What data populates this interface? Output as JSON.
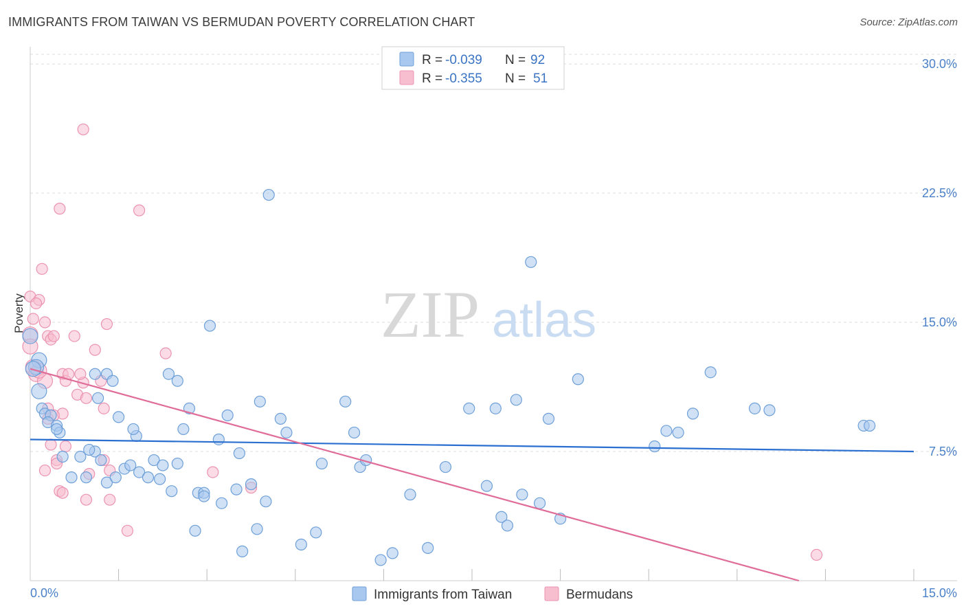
{
  "title": "IMMIGRANTS FROM TAIWAN VS BERMUDAN POVERTY CORRELATION CHART",
  "source": "Source: ZipAtlas.com",
  "watermark": {
    "zip": "ZIP",
    "atlas": "atlas"
  },
  "legend": {
    "rows": [
      {
        "r_label": "R = ",
        "r_value": "-0.039",
        "n_label": "N = ",
        "n_value": "92"
      },
      {
        "r_label": "R = ",
        "r_value": "-0.355",
        "n_label": "N = ",
        "n_value": "51"
      }
    ]
  },
  "colors": {
    "series1_fill": "#a9c8ef",
    "series1_stroke": "#6d9fd8",
    "series1_line": "#2a6fd0",
    "series2_fill": "#f7bed0",
    "series2_stroke": "#eb93b0",
    "series2_line": "#e06c98",
    "grid": "#dddddd",
    "tick_text": "#4a80c8"
  },
  "chart_data": {
    "type": "scatter",
    "title": "IMMIGRANTS FROM TAIWAN VS BERMUDAN POVERTY CORRELATION CHART",
    "xlabel": "",
    "ylabel": "Poverty",
    "xlim": [
      0,
      15
    ],
    "ylim": [
      0,
      31
    ],
    "x_tick_labels": [
      "0.0%",
      "15.0%"
    ],
    "y_ticks": [
      7.5,
      15.0,
      22.5,
      30.0
    ],
    "y_tick_labels": [
      "7.5%",
      "15.0%",
      "22.5%",
      "30.0%"
    ],
    "grid": true,
    "legend_position": "bottom-center",
    "series": [
      {
        "name": "Immigrants from Taiwan",
        "r": -0.039,
        "n": 92,
        "trend": {
          "x": [
            0,
            15
          ],
          "y": [
            8.2,
            7.5
          ]
        },
        "points": [
          [
            0.0,
            14.2
          ],
          [
            0.15,
            12.8
          ],
          [
            0.1,
            12.4
          ],
          [
            0.05,
            12.3
          ],
          [
            0.15,
            11.0
          ],
          [
            0.2,
            10.0
          ],
          [
            0.25,
            9.7
          ],
          [
            0.35,
            9.6
          ],
          [
            0.3,
            9.2
          ],
          [
            0.45,
            9.0
          ],
          [
            0.5,
            8.6
          ],
          [
            0.45,
            8.8
          ],
          [
            1.1,
            12.0
          ],
          [
            1.3,
            12.0
          ],
          [
            1.4,
            11.6
          ],
          [
            1.15,
            10.6
          ],
          [
            0.55,
            7.2
          ],
          [
            0.7,
            6.0
          ],
          [
            0.85,
            7.2
          ],
          [
            0.95,
            6.0
          ],
          [
            1.1,
            7.5
          ],
          [
            1.2,
            7.0
          ],
          [
            1.0,
            7.6
          ],
          [
            1.3,
            5.7
          ],
          [
            1.45,
            6.0
          ],
          [
            1.6,
            6.5
          ],
          [
            1.5,
            9.5
          ],
          [
            1.7,
            6.7
          ],
          [
            1.85,
            6.3
          ],
          [
            1.8,
            8.4
          ],
          [
            1.75,
            8.8
          ],
          [
            2.0,
            6.0
          ],
          [
            2.1,
            7.0
          ],
          [
            2.2,
            5.9
          ],
          [
            2.25,
            6.7
          ],
          [
            2.4,
            5.2
          ],
          [
            2.5,
            6.8
          ],
          [
            2.35,
            12.0
          ],
          [
            2.5,
            11.6
          ],
          [
            2.6,
            8.8
          ],
          [
            2.7,
            10.0
          ],
          [
            2.85,
            5.1
          ],
          [
            2.8,
            2.9
          ],
          [
            2.95,
            5.1
          ],
          [
            3.05,
            14.8
          ],
          [
            3.2,
            8.2
          ],
          [
            3.35,
            9.6
          ],
          [
            3.5,
            5.3
          ],
          [
            3.55,
            7.4
          ],
          [
            3.6,
            1.7
          ],
          [
            3.75,
            5.6
          ],
          [
            3.85,
            3.0
          ],
          [
            3.9,
            10.4
          ],
          [
            4.0,
            4.6
          ],
          [
            4.05,
            22.4
          ],
          [
            4.25,
            9.4
          ],
          [
            4.35,
            8.6
          ],
          [
            4.85,
            2.8
          ],
          [
            4.95,
            6.8
          ],
          [
            5.35,
            10.4
          ],
          [
            5.5,
            8.6
          ],
          [
            5.6,
            6.6
          ],
          [
            5.7,
            7.0
          ],
          [
            5.95,
            1.2
          ],
          [
            6.15,
            1.6
          ],
          [
            6.45,
            5.0
          ],
          [
            6.75,
            1.9
          ],
          [
            7.05,
            6.6
          ],
          [
            7.45,
            10.0
          ],
          [
            7.75,
            5.5
          ],
          [
            7.9,
            10.0
          ],
          [
            8.0,
            3.7
          ],
          [
            8.1,
            3.2
          ],
          [
            8.25,
            10.5
          ],
          [
            8.35,
            5.0
          ],
          [
            8.5,
            18.5
          ],
          [
            8.65,
            4.5
          ],
          [
            8.8,
            9.4
          ],
          [
            9.0,
            3.6
          ],
          [
            9.3,
            11.7
          ],
          [
            10.6,
            7.8
          ],
          [
            10.8,
            8.7
          ],
          [
            11.0,
            8.6
          ],
          [
            11.25,
            9.7
          ],
          [
            11.55,
            12.1
          ],
          [
            12.3,
            10.0
          ],
          [
            12.55,
            9.9
          ],
          [
            14.15,
            9.0
          ],
          [
            14.25,
            9.0
          ],
          [
            3.25,
            4.5
          ],
          [
            4.6,
            2.1
          ],
          [
            2.95,
            4.9
          ]
        ]
      },
      {
        "name": "Bermudans",
        "r": -0.355,
        "n": 51,
        "trend": {
          "x": [
            0,
            13.05
          ],
          "y": [
            12.3,
            0.0
          ]
        },
        "points": [
          [
            0.0,
            16.5
          ],
          [
            0.05,
            15.2
          ],
          [
            0.0,
            14.3
          ],
          [
            0.0,
            13.6
          ],
          [
            0.05,
            12.4
          ],
          [
            0.1,
            12.0
          ],
          [
            0.15,
            16.3
          ],
          [
            0.1,
            16.1
          ],
          [
            0.25,
            15.0
          ],
          [
            0.2,
            18.1
          ],
          [
            0.25,
            11.6
          ],
          [
            0.3,
            14.2
          ],
          [
            0.35,
            14.0
          ],
          [
            0.4,
            14.2
          ],
          [
            0.3,
            10.0
          ],
          [
            0.3,
            9.4
          ],
          [
            0.35,
            7.9
          ],
          [
            0.45,
            7.0
          ],
          [
            0.5,
            21.6
          ],
          [
            0.55,
            12.0
          ],
          [
            0.6,
            11.6
          ],
          [
            0.65,
            12.0
          ],
          [
            0.45,
            6.8
          ],
          [
            0.5,
            5.2
          ],
          [
            0.55,
            5.1
          ],
          [
            0.25,
            6.4
          ],
          [
            0.75,
            14.2
          ],
          [
            0.8,
            10.8
          ],
          [
            0.9,
            11.5
          ],
          [
            0.95,
            10.6
          ],
          [
            0.85,
            12.0
          ],
          [
            0.9,
            26.2
          ],
          [
            1.1,
            13.4
          ],
          [
            1.2,
            11.6
          ],
          [
            1.25,
            10.0
          ],
          [
            1.3,
            14.9
          ],
          [
            1.25,
            7.0
          ],
          [
            1.35,
            6.4
          ],
          [
            1.35,
            4.7
          ],
          [
            1.65,
            2.9
          ],
          [
            1.85,
            21.5
          ],
          [
            2.3,
            13.2
          ],
          [
            3.1,
            6.3
          ],
          [
            3.75,
            5.4
          ],
          [
            13.35,
            1.5
          ],
          [
            0.6,
            7.8
          ],
          [
            0.95,
            4.7
          ],
          [
            1.0,
            6.2
          ],
          [
            0.55,
            9.7
          ],
          [
            0.15,
            12.2
          ],
          [
            0.4,
            9.6
          ]
        ]
      }
    ]
  }
}
